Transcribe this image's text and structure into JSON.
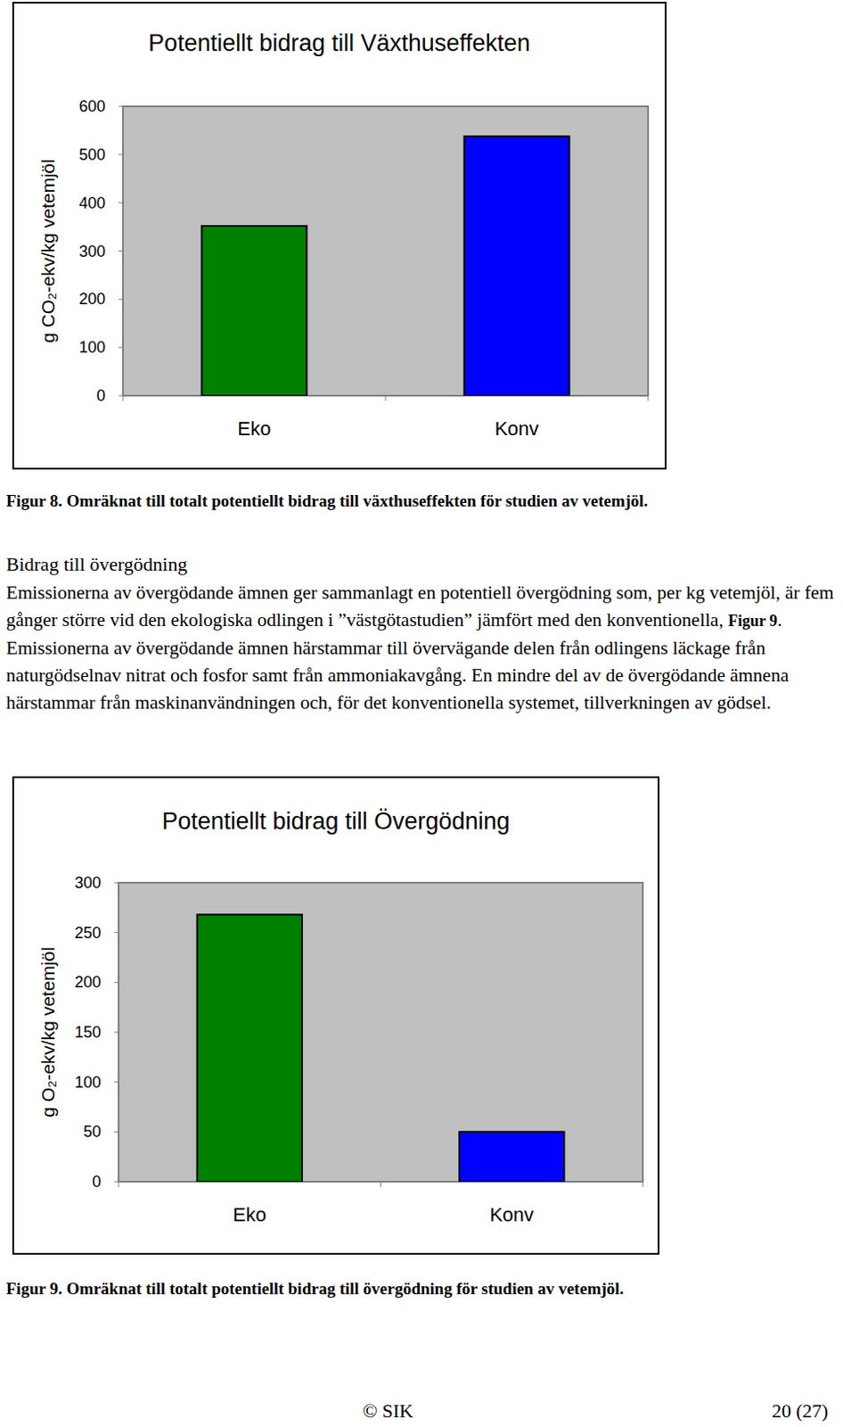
{
  "chart_data": [
    {
      "type": "bar",
      "title": "Potentiellt bidrag till Växthuseffekten",
      "y_label": "g CO₂-ekv/kg vetemjöl",
      "categories": [
        "Eko",
        "Konv"
      ],
      "values": [
        352,
        538
      ],
      "colors": [
        "#008000",
        "#0000ff"
      ],
      "ylim": [
        0,
        600
      ],
      "yticks": [
        0,
        100,
        200,
        300,
        400,
        500,
        600
      ],
      "grid": false,
      "caption": "Figur 8. Omräknat till totalt potentiellt bidrag till växthuseffekten för studien av vetemjöl."
    },
    {
      "type": "bar",
      "title": "Potentiellt bidrag till Övergödning",
      "y_label": "g O₂-ekv/kg vetemjöl",
      "categories": [
        "Eko",
        "Konv"
      ],
      "values": [
        268,
        50
      ],
      "colors": [
        "#008000",
        "#0000ff"
      ],
      "ylim": [
        0,
        300
      ],
      "yticks": [
        0,
        50,
        100,
        150,
        200,
        250,
        300
      ],
      "grid": false,
      "caption": "Figur 9. Omräknat till totalt potentiellt bidrag till övergödning för studien av vetemjöl."
    }
  ],
  "document": {
    "heading": "Bidrag till övergödning",
    "paragraph": [
      "Emissionerna av övergödande ämnen ger sammanlagt en potentiell övergödning som, per kg vetemjöl, är fem gånger större vid den ekologiska odlingen i ”västgötastudien” jämfört med den konventionella, ",
      "Figur 9",
      ". Emissionerna av övergödande ämnen härstammar till övervägande delen från odlingens läckage från naturgödselnav nitrat och fosfor samt från ammoniakavgång. En mindre del av de övergödande ämnena härstammar från maskinanvändningen och, för det konventionella systemet, tillverkningen av gödsel."
    ],
    "footer": {
      "left": "© SIK",
      "right": "20 (27)"
    }
  }
}
